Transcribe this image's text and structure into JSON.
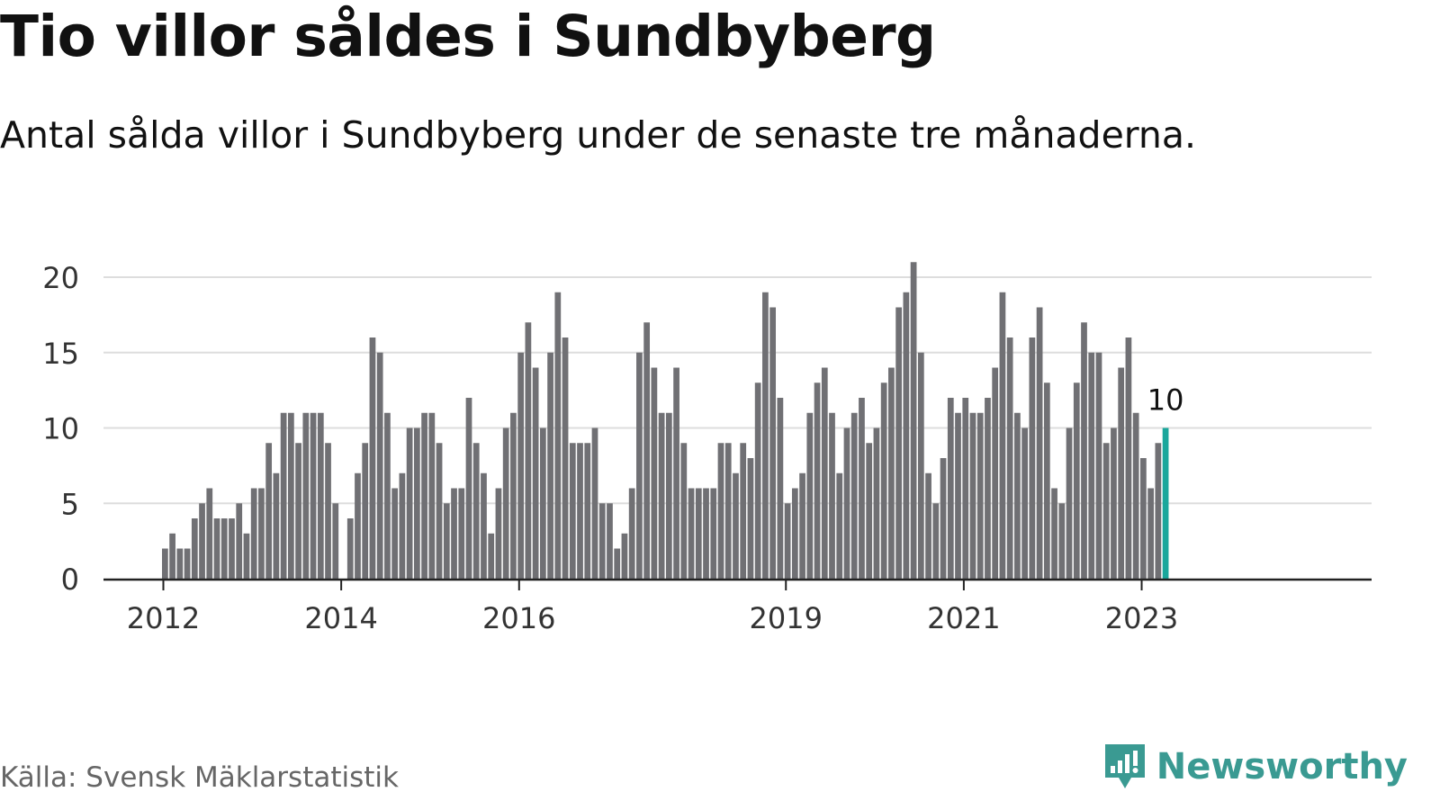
{
  "header": {
    "title": "Tio villor såldes i Sundbyberg",
    "subtitle": "Antal sålda villor i Sundbyberg under de senaste tre månaderna."
  },
  "footer": {
    "source": "Källa: Svensk Mäklarstatistik",
    "brand": "Newsworthy"
  },
  "colors": {
    "bar": "#707074",
    "highlight": "#1aa79c",
    "grid": "#dddddd",
    "axis": "#222222",
    "brand": "#3a9a92"
  },
  "chart_data": {
    "type": "bar",
    "title": "Tio villor såldes i Sundbyberg",
    "subtitle": "Antal sålda villor i Sundbyberg under de senaste tre månaderna.",
    "xlabel": "",
    "ylabel": "",
    "ylim": [
      0,
      21
    ],
    "yticks": [
      0,
      5,
      10,
      15,
      20
    ],
    "grid": true,
    "x_start": "2012-01",
    "x_ticks": [
      {
        "label": "2012",
        "index": 0
      },
      {
        "label": "2014",
        "index": 24
      },
      {
        "label": "2016",
        "index": 48
      },
      {
        "label": "2019",
        "index": 84
      },
      {
        "label": "2021",
        "index": 108
      },
      {
        "label": "2023",
        "index": 132
      }
    ],
    "values": [
      2,
      3,
      2,
      2,
      4,
      5,
      6,
      4,
      4,
      4,
      5,
      3,
      6,
      6,
      9,
      7,
      11,
      11,
      9,
      11,
      11,
      11,
      9,
      5,
      0,
      4,
      7,
      9,
      16,
      15,
      11,
      6,
      7,
      10,
      10,
      11,
      11,
      9,
      5,
      6,
      6,
      12,
      9,
      7,
      3,
      6,
      10,
      11,
      15,
      17,
      14,
      10,
      15,
      19,
      16,
      9,
      9,
      9,
      10,
      5,
      5,
      2,
      3,
      6,
      15,
      17,
      14,
      11,
      11,
      14,
      9,
      6,
      6,
      6,
      6,
      9,
      9,
      7,
      9,
      8,
      13,
      19,
      18,
      12,
      5,
      6,
      7,
      11,
      13,
      14,
      11,
      7,
      10,
      11,
      12,
      9,
      10,
      13,
      14,
      18,
      19,
      21,
      15,
      7,
      5,
      8,
      12,
      11,
      12,
      11,
      11,
      12,
      14,
      19,
      16,
      11,
      10,
      16,
      18,
      13,
      6,
      5,
      10,
      13,
      17,
      15,
      15,
      9,
      10,
      14,
      16,
      11,
      8,
      6,
      9,
      10
    ],
    "highlight_index": 135,
    "highlight_label": "10"
  }
}
